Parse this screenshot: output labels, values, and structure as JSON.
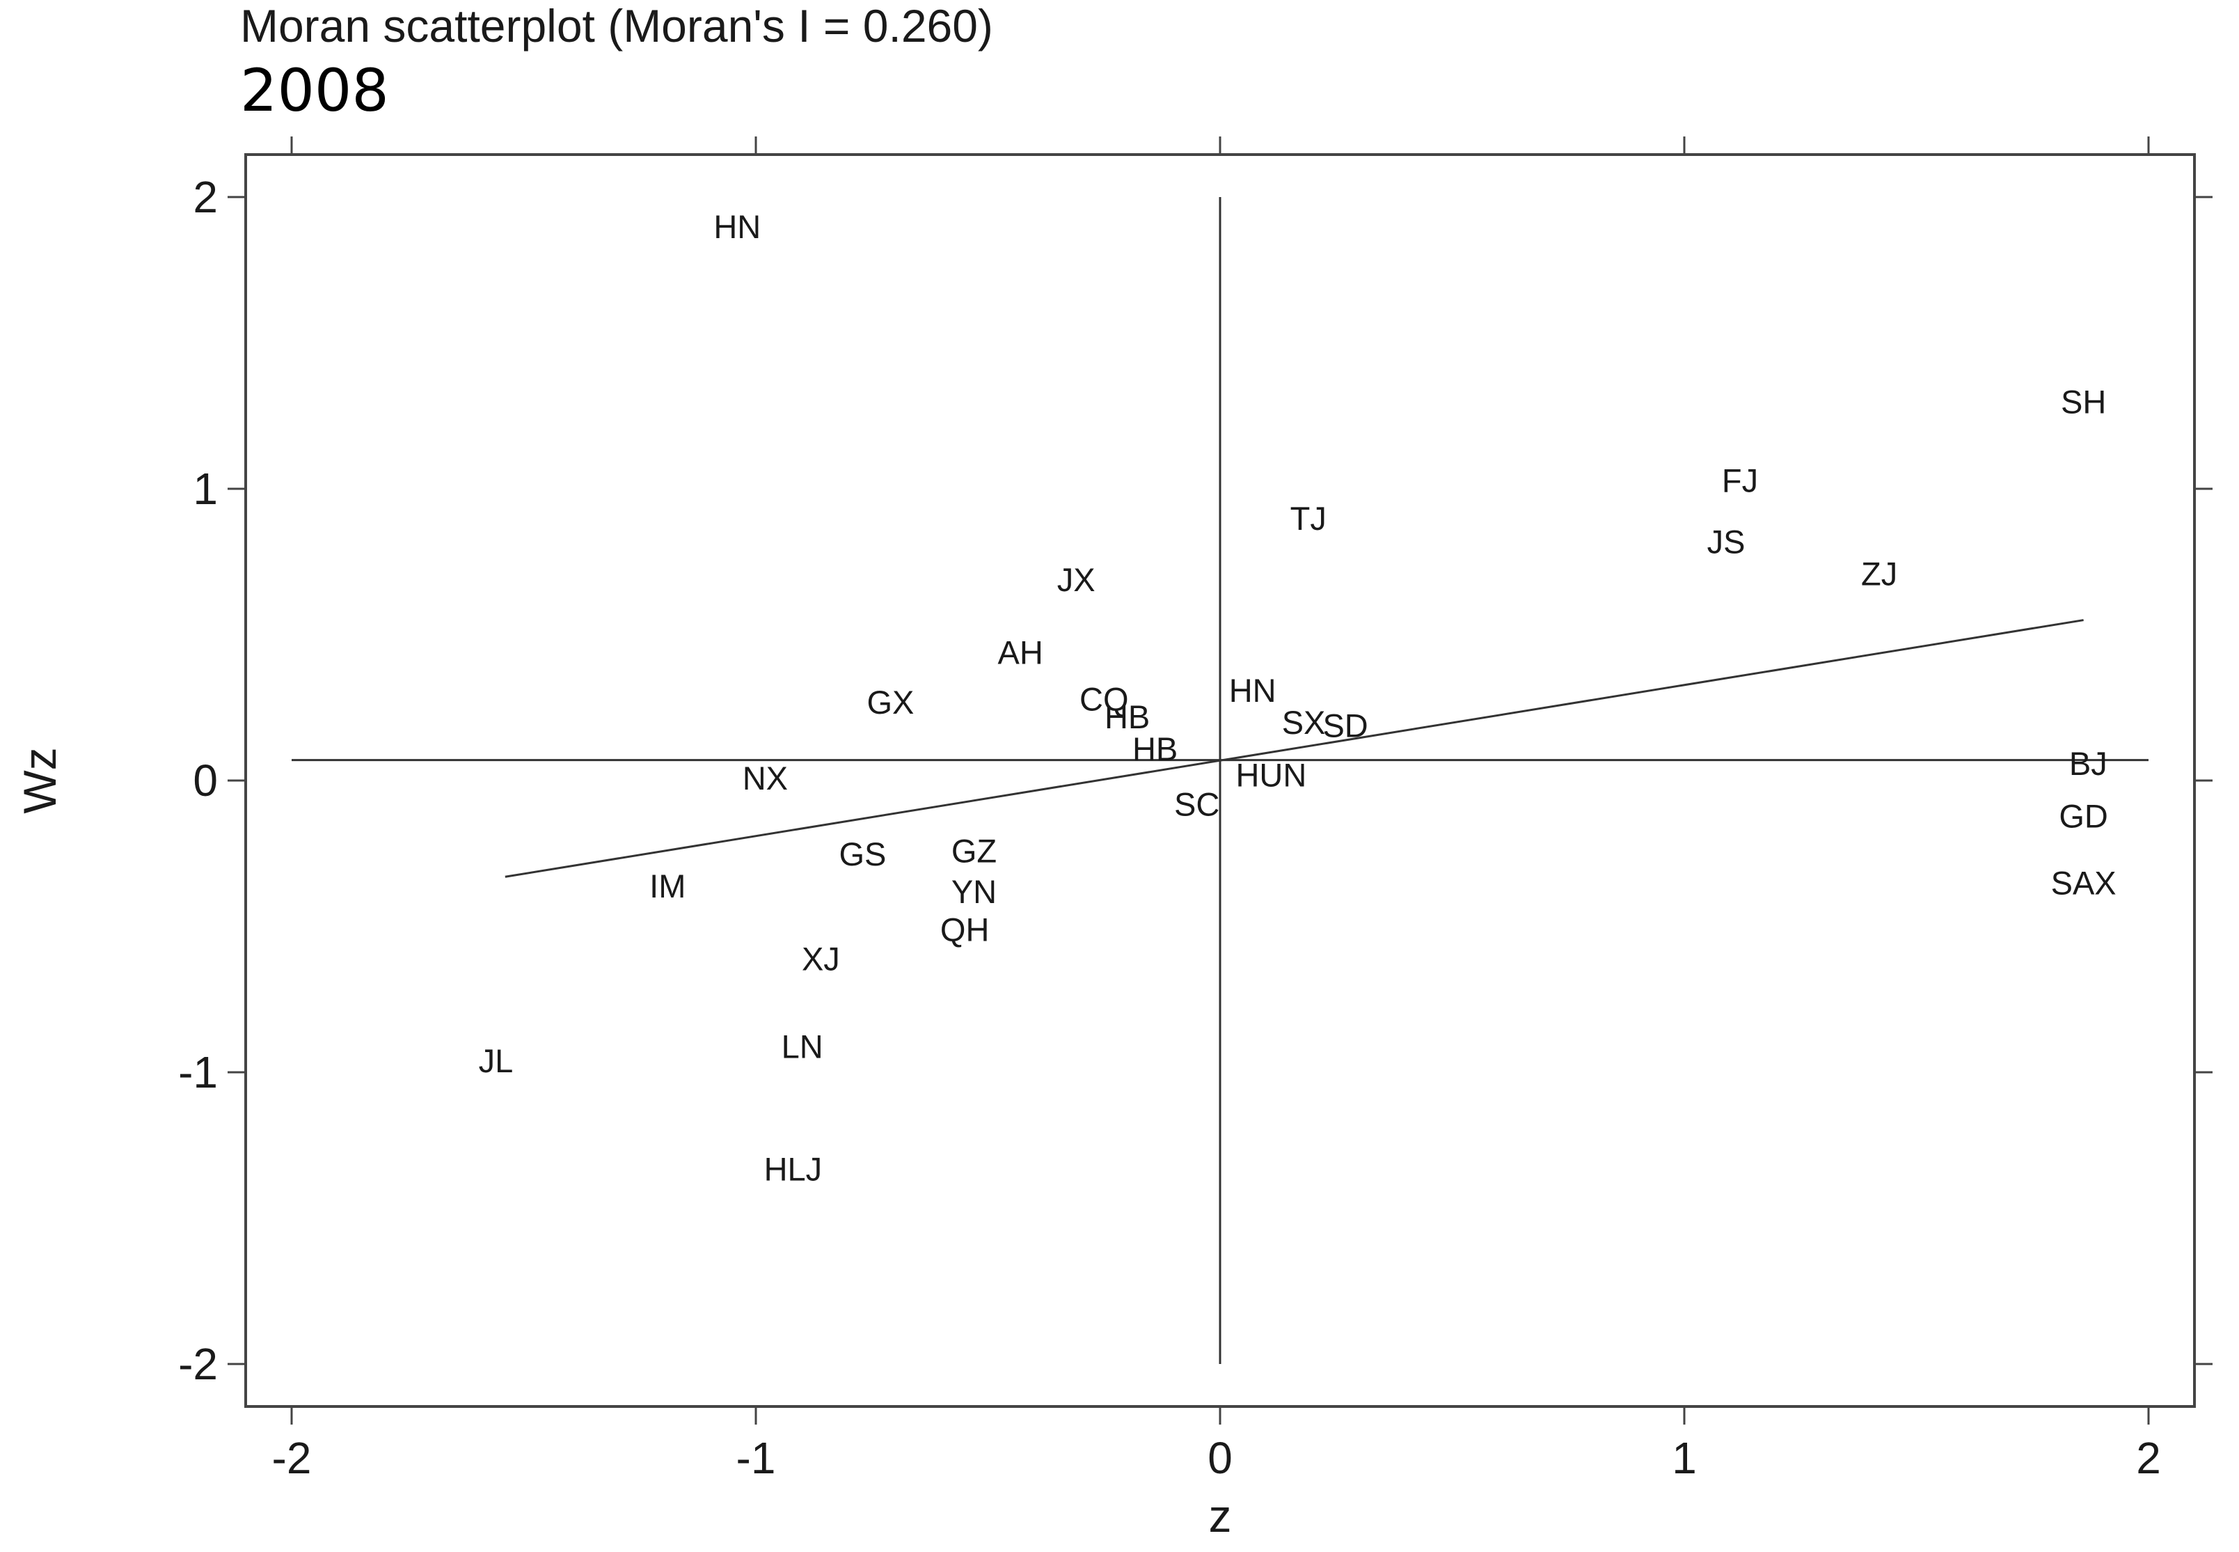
{
  "title": "Moran scatterplot (Moran's I = 0.260)",
  "subtitle": "2008",
  "chart_data": {
    "type": "scatter",
    "title": "Moran scatterplot (Moran's I = 0.260)",
    "subtitle": "2008",
    "xlabel": "z",
    "ylabel": "Wz",
    "xlim": [
      -2.1,
      2.1
    ],
    "ylim": [
      -2.2,
      2.15
    ],
    "xticks": [
      -2,
      -1,
      0,
      1,
      2
    ],
    "yticks": [
      -2,
      -1,
      0,
      1,
      2
    ],
    "grid": false,
    "reference_lines": {
      "vertical_x": 0,
      "horizontal_y": 0.07
    },
    "regression_line": {
      "x": [
        -1.54,
        1.86
      ],
      "y": [
        -0.33,
        0.55
      ]
    },
    "points": [
      {
        "label": "HN",
        "x": -1.04,
        "y": 1.9
      },
      {
        "label": "SH",
        "x": 1.86,
        "y": 1.3
      },
      {
        "label": "FJ",
        "x": 1.12,
        "y": 1.03
      },
      {
        "label": "TJ",
        "x": 0.19,
        "y": 0.9
      },
      {
        "label": "JS",
        "x": 1.09,
        "y": 0.82
      },
      {
        "label": "ZJ",
        "x": 1.42,
        "y": 0.71
      },
      {
        "label": "JX",
        "x": -0.31,
        "y": 0.69
      },
      {
        "label": "AH",
        "x": -0.43,
        "y": 0.44
      },
      {
        "label": "HN",
        "x": 0.07,
        "y": 0.31
      },
      {
        "label": "CQ",
        "x": -0.25,
        "y": 0.28
      },
      {
        "label": "GX",
        "x": -0.71,
        "y": 0.27
      },
      {
        "label": "HB",
        "x": -0.2,
        "y": 0.22
      },
      {
        "label": "SX",
        "x": 0.18,
        "y": 0.2
      },
      {
        "label": "SD",
        "x": 0.27,
        "y": 0.19
      },
      {
        "label": "HB",
        "x": -0.14,
        "y": 0.11
      },
      {
        "label": "BJ",
        "x": 1.87,
        "y": 0.06
      },
      {
        "label": "HUN",
        "x": 0.11,
        "y": 0.02
      },
      {
        "label": "NX",
        "x": -0.98,
        "y": 0.01
      },
      {
        "label": "SC",
        "x": -0.05,
        "y": -0.08
      },
      {
        "label": "GD",
        "x": 1.86,
        "y": -0.12
      },
      {
        "label": "GS",
        "x": -0.77,
        "y": -0.25
      },
      {
        "label": "GZ",
        "x": -0.53,
        "y": -0.24
      },
      {
        "label": "SAX",
        "x": 1.86,
        "y": -0.35
      },
      {
        "label": "IM",
        "x": -1.19,
        "y": -0.36
      },
      {
        "label": "YN",
        "x": -0.53,
        "y": -0.38
      },
      {
        "label": "QH",
        "x": -0.55,
        "y": -0.51
      },
      {
        "label": "XJ",
        "x": -0.86,
        "y": -0.61
      },
      {
        "label": "LN",
        "x": -0.9,
        "y": -0.91
      },
      {
        "label": "JL",
        "x": -1.56,
        "y": -0.96
      },
      {
        "label": "HLJ",
        "x": -0.92,
        "y": -1.33
      }
    ]
  }
}
